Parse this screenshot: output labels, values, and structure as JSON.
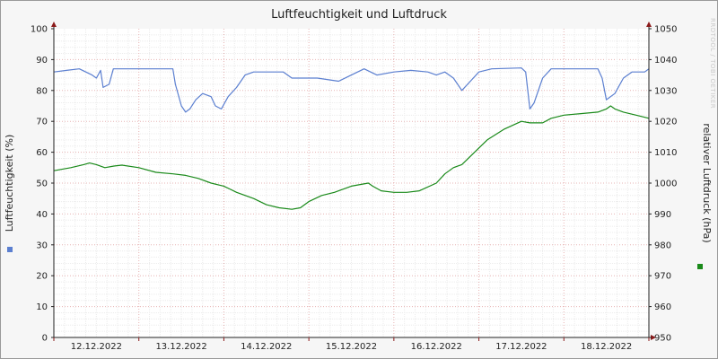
{
  "chart_data": {
    "type": "line",
    "title": "Luftfeuchtigkeit und Luftdruck",
    "watermark": "RRDTOOL / TOBI OETIKER",
    "ylabel_left": "Luftfeuchtigkeit (%)",
    "ylabel_right": "relativer Luftdruck (hPa)",
    "ylim_left": [
      0,
      100
    ],
    "ylim_right": [
      950,
      1050
    ],
    "yticks_left": [
      "0",
      "10",
      "20",
      "30",
      "40",
      "50",
      "60",
      "70",
      "80",
      "90",
      "100"
    ],
    "yticks_right": [
      "950",
      "960",
      "970",
      "980",
      "990",
      "1000",
      "1010",
      "1020",
      "1030",
      "1040",
      "1050"
    ],
    "xlim": [
      0,
      7.0
    ],
    "xticks": [
      {
        "x": 0.5,
        "label": "12.12.2022"
      },
      {
        "x": 1.5,
        "label": "13.12.2022"
      },
      {
        "x": 2.5,
        "label": "14.12.2022"
      },
      {
        "x": 3.5,
        "label": "15.12.2022"
      },
      {
        "x": 4.5,
        "label": "16.12.2022"
      },
      {
        "x": 5.5,
        "label": "17.12.2022"
      },
      {
        "x": 6.5,
        "label": "18.12.2022"
      }
    ],
    "grid": true,
    "series": [
      {
        "axis": "left",
        "color": "#5b7fd0",
        "points": [
          [
            0,
            86
          ],
          [
            0.15,
            86.5
          ],
          [
            0.3,
            87
          ],
          [
            0.45,
            85
          ],
          [
            0.5,
            84
          ],
          [
            0.55,
            86.5
          ],
          [
            0.58,
            81
          ],
          [
            0.65,
            82
          ],
          [
            0.7,
            87
          ],
          [
            1.0,
            87
          ],
          [
            1.4,
            87
          ],
          [
            1.43,
            82
          ],
          [
            1.5,
            75
          ],
          [
            1.55,
            73
          ],
          [
            1.6,
            74
          ],
          [
            1.67,
            77
          ],
          [
            1.75,
            79
          ],
          [
            1.85,
            78
          ],
          [
            1.9,
            75
          ],
          [
            1.97,
            74
          ],
          [
            2.05,
            78
          ],
          [
            2.15,
            81
          ],
          [
            2.25,
            85
          ],
          [
            2.35,
            86
          ],
          [
            2.7,
            86
          ],
          [
            2.8,
            84
          ],
          [
            3.1,
            84
          ],
          [
            3.35,
            83
          ],
          [
            3.5,
            85
          ],
          [
            3.65,
            87
          ],
          [
            3.8,
            85
          ],
          [
            4.0,
            86
          ],
          [
            4.2,
            86.5
          ],
          [
            4.4,
            86
          ],
          [
            4.5,
            85
          ],
          [
            4.6,
            86
          ],
          [
            4.7,
            84
          ],
          [
            4.8,
            80
          ],
          [
            4.9,
            83
          ],
          [
            5.0,
            86
          ],
          [
            5.15,
            87
          ],
          [
            5.5,
            87.3
          ],
          [
            5.55,
            86
          ],
          [
            5.6,
            74
          ],
          [
            5.65,
            76
          ],
          [
            5.75,
            84
          ],
          [
            5.85,
            87
          ],
          [
            6.1,
            87
          ],
          [
            6.4,
            87
          ],
          [
            6.45,
            84
          ],
          [
            6.5,
            77
          ],
          [
            6.6,
            79
          ],
          [
            6.7,
            84
          ],
          [
            6.8,
            86
          ],
          [
            6.95,
            86
          ],
          [
            7.0,
            87
          ]
        ]
      },
      {
        "axis": "right",
        "color": "#1a8a1a",
        "points": [
          [
            0,
            1004
          ],
          [
            0.2,
            1005
          ],
          [
            0.35,
            1006
          ],
          [
            0.42,
            1006.5
          ],
          [
            0.5,
            1006
          ],
          [
            0.6,
            1005
          ],
          [
            0.7,
            1005.5
          ],
          [
            0.8,
            1005.8
          ],
          [
            1.0,
            1005
          ],
          [
            1.2,
            1003.5
          ],
          [
            1.4,
            1003
          ],
          [
            1.55,
            1002.5
          ],
          [
            1.7,
            1001.5
          ],
          [
            1.85,
            1000
          ],
          [
            2.0,
            999
          ],
          [
            2.15,
            997
          ],
          [
            2.35,
            995
          ],
          [
            2.5,
            993
          ],
          [
            2.65,
            992
          ],
          [
            2.8,
            991.5
          ],
          [
            2.9,
            992
          ],
          [
            3.0,
            994
          ],
          [
            3.15,
            996
          ],
          [
            3.3,
            997
          ],
          [
            3.5,
            999
          ],
          [
            3.7,
            1000
          ],
          [
            3.75,
            999
          ],
          [
            3.85,
            997.5
          ],
          [
            4.0,
            997
          ],
          [
            4.15,
            997
          ],
          [
            4.3,
            997.5
          ],
          [
            4.5,
            1000
          ],
          [
            4.6,
            1003
          ],
          [
            4.7,
            1005
          ],
          [
            4.8,
            1006
          ],
          [
            4.95,
            1010
          ],
          [
            5.1,
            1014
          ],
          [
            5.3,
            1017.5
          ],
          [
            5.5,
            1020
          ],
          [
            5.6,
            1019.5
          ],
          [
            5.75,
            1019.5
          ],
          [
            5.85,
            1021
          ],
          [
            6.0,
            1022
          ],
          [
            6.2,
            1022.5
          ],
          [
            6.4,
            1023
          ],
          [
            6.5,
            1024
          ],
          [
            6.55,
            1025
          ],
          [
            6.6,
            1024
          ],
          [
            6.7,
            1023
          ],
          [
            6.85,
            1022
          ],
          [
            7.0,
            1021
          ]
        ]
      }
    ]
  }
}
